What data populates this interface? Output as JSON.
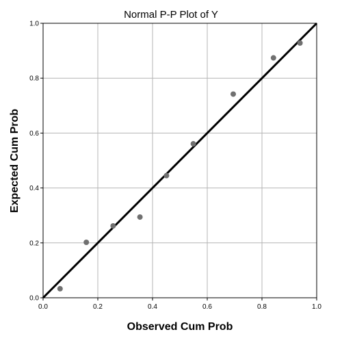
{
  "chart_data": {
    "type": "scatter",
    "title": "Normal P-P Plot of Y",
    "xlabel": "Observed Cum Prob",
    "ylabel": "Expected Cum Prob",
    "xlim": [
      0.0,
      1.0
    ],
    "ylim": [
      0.0,
      1.0
    ],
    "x_ticks": [
      "0.0",
      "0.2",
      "0.4",
      "0.6",
      "0.8",
      "1.0"
    ],
    "y_ticks": [
      "0.0",
      "0.2",
      "0.4",
      "0.6",
      "0.8",
      "1.0"
    ],
    "grid": true,
    "reference_line": {
      "x": [
        0.0,
        1.0
      ],
      "y": [
        0.0,
        1.0
      ],
      "color": "#000000"
    },
    "points": [
      {
        "x": 0.062,
        "y": 0.033
      },
      {
        "x": 0.158,
        "y": 0.202
      },
      {
        "x": 0.256,
        "y": 0.262
      },
      {
        "x": 0.354,
        "y": 0.294
      },
      {
        "x": 0.451,
        "y": 0.445
      },
      {
        "x": 0.549,
        "y": 0.561
      },
      {
        "x": 0.695,
        "y": 0.742
      },
      {
        "x": 0.842,
        "y": 0.874
      },
      {
        "x": 0.939,
        "y": 0.928
      }
    ],
    "point_color": "#707070"
  }
}
